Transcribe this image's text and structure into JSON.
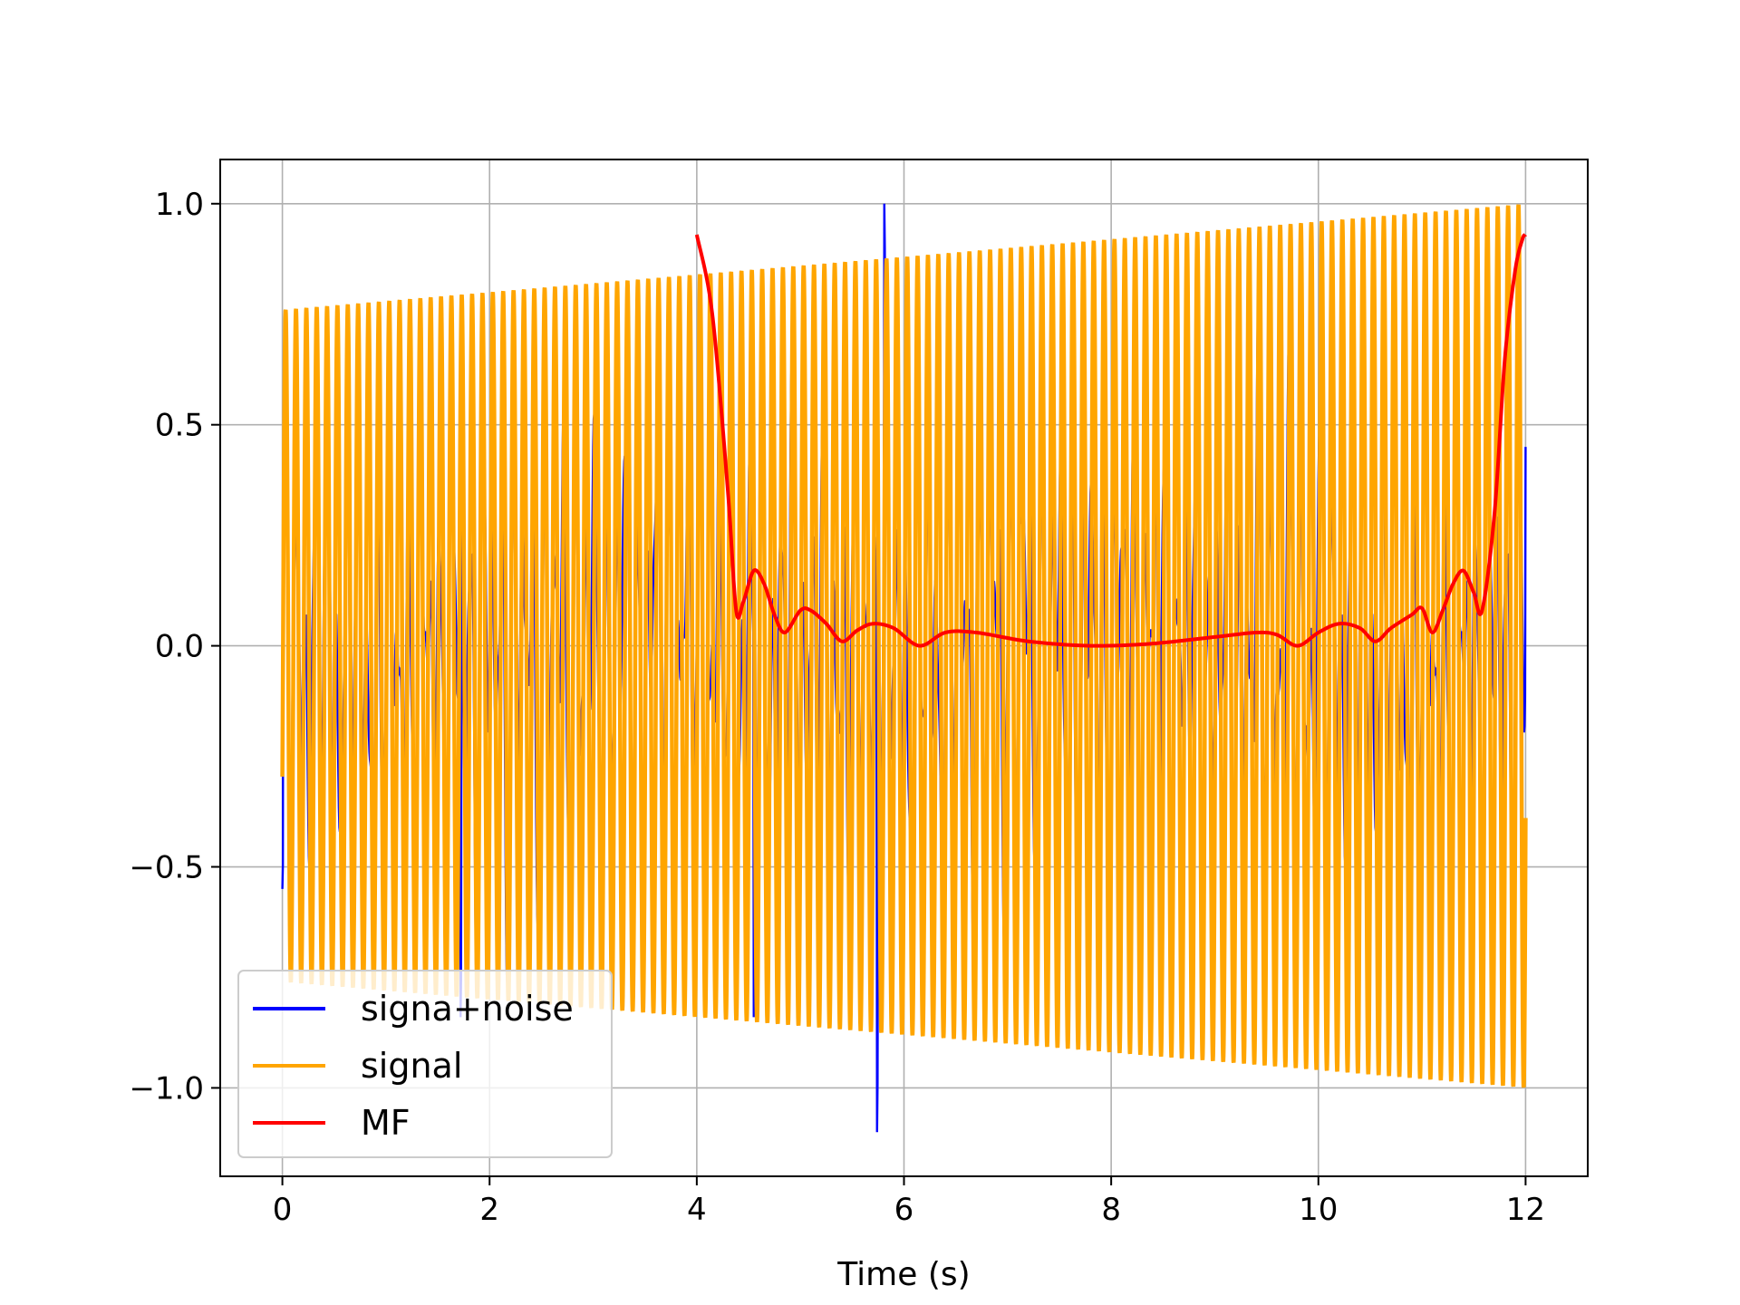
{
  "chart_data": {
    "type": "line",
    "title": "",
    "xlabel": "Time (s)",
    "ylabel": "",
    "xlim": [
      -0.6,
      12.6
    ],
    "ylim": [
      -1.2,
      1.1
    ],
    "x_ticks": [
      0,
      2,
      4,
      6,
      8,
      10,
      12
    ],
    "x_tick_labels": [
      "0",
      "2",
      "4",
      "6",
      "8",
      "10",
      "12"
    ],
    "y_ticks": [
      -1.0,
      -0.5,
      0.0,
      0.5,
      1.0
    ],
    "y_tick_labels": [
      "−1.0",
      "−0.5",
      "0.0",
      "0.5",
      "1.0"
    ],
    "grid": true,
    "legend_position": "lower-left",
    "series": [
      {
        "name": "signa+noise",
        "color": "#0000ff",
        "description_values": {
          "x_range": [
            0,
            12
          ],
          "spikes": [
            {
              "x": 0.0,
              "y": -0.55
            },
            {
              "x": 1.72,
              "y": -0.84
            },
            {
              "x": 4.55,
              "y": -0.84
            },
            {
              "x": 5.74,
              "y": -1.1
            },
            {
              "x": 5.81,
              "y": 1.0
            },
            {
              "x": 8.9,
              "y": -0.55
            },
            {
              "x": 12.0,
              "y": 0.45
            }
          ]
        }
      },
      {
        "name": "signal",
        "color": "#ffa500",
        "description_values": {
          "x_range": [
            0,
            12
          ],
          "cycles": 120,
          "amplitude_start": 0.76,
          "amplitude_end": 1.0
        }
      },
      {
        "name": "MF",
        "color": "#ff0000",
        "x": [
          4.0,
          4.15,
          4.3,
          4.38,
          4.45,
          4.55,
          4.65,
          4.75,
          4.85,
          5.0,
          5.1,
          5.25,
          5.4,
          5.55,
          5.7,
          5.9,
          6.15,
          6.4,
          6.7,
          7.2,
          7.8,
          8.4,
          9.0,
          9.4,
          9.6,
          9.8,
          10.0,
          10.2,
          10.4,
          10.55,
          10.7,
          10.9,
          11.0,
          11.1,
          11.2,
          11.3,
          11.4,
          11.5,
          11.58,
          11.7,
          11.8,
          11.9,
          11.97,
          12.0
        ],
        "y": [
          0.93,
          0.75,
          0.35,
          0.08,
          0.1,
          0.17,
          0.14,
          0.07,
          0.03,
          0.08,
          0.08,
          0.05,
          0.01,
          0.035,
          0.05,
          0.04,
          0.0,
          0.03,
          0.03,
          0.01,
          0.0,
          0.005,
          0.02,
          0.03,
          0.025,
          0.0,
          0.03,
          0.05,
          0.04,
          0.01,
          0.04,
          0.07,
          0.085,
          0.03,
          0.08,
          0.14,
          0.17,
          0.12,
          0.08,
          0.3,
          0.65,
          0.85,
          0.92,
          0.93
        ]
      }
    ]
  }
}
